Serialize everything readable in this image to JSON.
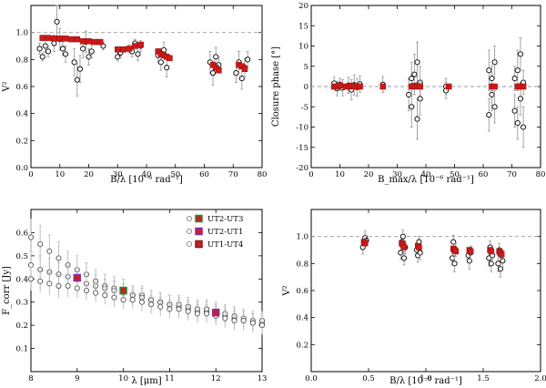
{
  "chart_data": [
    {
      "id": "p1",
      "type": "scatter",
      "xlabel": "B/λ [10⁻⁶ rad⁻¹]",
      "ylabel": "V²",
      "xlim": [
        0,
        80
      ],
      "ylim": [
        0.0,
        1.2
      ],
      "xticks": [
        0,
        10,
        20,
        30,
        40,
        50,
        60,
        70,
        80
      ],
      "yticks": [
        0.0,
        0.2,
        0.4,
        0.6,
        0.8,
        1.0
      ],
      "ref_line": 1.0,
      "model": [
        [
          4,
          0.96
        ],
        [
          6,
          0.96
        ],
        [
          8,
          0.955
        ],
        [
          10,
          0.955
        ],
        [
          12,
          0.955
        ],
        [
          14,
          0.95
        ],
        [
          16,
          0.95
        ],
        [
          18,
          0.935
        ],
        [
          20,
          0.935
        ],
        [
          22,
          0.93
        ],
        [
          24,
          0.93
        ],
        [
          30,
          0.875
        ],
        [
          32,
          0.875
        ],
        [
          34,
          0.88
        ],
        [
          36,
          0.9
        ],
        [
          38,
          0.91
        ],
        [
          44,
          0.86
        ],
        [
          45,
          0.84
        ],
        [
          46,
          0.83
        ],
        [
          47,
          0.82
        ],
        [
          48,
          0.81
        ],
        [
          63,
          0.76
        ],
        [
          64,
          0.74
        ],
        [
          65,
          0.72
        ],
        [
          72,
          0.76
        ],
        [
          73,
          0.75
        ],
        [
          74,
          0.73
        ]
      ],
      "observations": [
        [
          3,
          0.88,
          0.04
        ],
        [
          4,
          0.82,
          0.03
        ],
        [
          5,
          0.9,
          0.05
        ],
        [
          6,
          0.86,
          0.04
        ],
        [
          8,
          0.92,
          0.06
        ],
        [
          9,
          1.08,
          0.12
        ],
        [
          10,
          0.95,
          0.08
        ],
        [
          11,
          0.88,
          0.05
        ],
        [
          12,
          0.84,
          0.06
        ],
        [
          15,
          0.78,
          0.1
        ],
        [
          16,
          0.65,
          0.12
        ],
        [
          17,
          0.73,
          0.1
        ],
        [
          18,
          0.88,
          0.07
        ],
        [
          19,
          0.93,
          0.08
        ],
        [
          20,
          0.82,
          0.06
        ],
        [
          21,
          0.86,
          0.05
        ],
        [
          25,
          0.9,
          0.03
        ],
        [
          30,
          0.82,
          0.03
        ],
        [
          31,
          0.85,
          0.04
        ],
        [
          34,
          0.88,
          0.03
        ],
        [
          35,
          0.86,
          0.04
        ],
        [
          36,
          0.92,
          0.03
        ],
        [
          37,
          0.84,
          0.05
        ],
        [
          38,
          0.9,
          0.04
        ],
        [
          44,
          0.83,
          0.05
        ],
        [
          45,
          0.78,
          0.06
        ],
        [
          46,
          0.87,
          0.06
        ],
        [
          47,
          0.74,
          0.07
        ],
        [
          62,
          0.78,
          0.08
        ],
        [
          63,
          0.7,
          0.09
        ],
        [
          64,
          0.82,
          0.07
        ],
        [
          65,
          0.76,
          0.06
        ],
        [
          71,
          0.7,
          0.07
        ],
        [
          72,
          0.78,
          0.08
        ],
        [
          73,
          0.66,
          0.08
        ],
        [
          74,
          0.74,
          0.07
        ],
        [
          75,
          0.8,
          0.06
        ]
      ]
    },
    {
      "id": "p2",
      "type": "scatter",
      "xlabel": "B_max/λ [10⁻⁶ rad⁻¹]",
      "ylabel": "Closure phase [°]",
      "xlim": [
        0,
        80
      ],
      "ylim": [
        -20,
        20
      ],
      "xticks": [
        0,
        10,
        20,
        30,
        40,
        50,
        60,
        70,
        80
      ],
      "yticks": [
        -20,
        -15,
        -10,
        -5,
        0,
        5,
        10,
        15,
        20
      ],
      "ref_line": 0,
      "model": [
        [
          8,
          0
        ],
        [
          9,
          0
        ],
        [
          10,
          0.3
        ],
        [
          12,
          0
        ],
        [
          13,
          0
        ],
        [
          14,
          0.2
        ],
        [
          15,
          0
        ],
        [
          16,
          0
        ],
        [
          17,
          0
        ],
        [
          25,
          0
        ],
        [
          35,
          0
        ],
        [
          36,
          0.2
        ],
        [
          37,
          0
        ],
        [
          38,
          0
        ],
        [
          48,
          0
        ],
        [
          63,
          0
        ],
        [
          64,
          0
        ],
        [
          72,
          0
        ],
        [
          73,
          0
        ],
        [
          74,
          0
        ]
      ],
      "observations": [
        [
          8,
          0.8,
          1.5
        ],
        [
          9,
          -0.5,
          1.8
        ],
        [
          10,
          0.5,
          1.5
        ],
        [
          11,
          -0.3,
          2.0
        ],
        [
          13,
          0.3,
          2.0
        ],
        [
          14,
          -0.8,
          2.5
        ],
        [
          15,
          0.4,
          2.5
        ],
        [
          16,
          -0.2,
          2.2
        ],
        [
          17,
          0.6,
          2.0
        ],
        [
          25,
          0.5,
          2
        ],
        [
          34,
          -2,
          4
        ],
        [
          35,
          2,
          4
        ],
        [
          35,
          -5,
          5
        ],
        [
          36,
          3,
          5
        ],
        [
          37,
          -8,
          5
        ],
        [
          37,
          6,
          5
        ],
        [
          38,
          1,
          4
        ],
        [
          38,
          -3,
          4
        ],
        [
          47,
          0,
          2
        ],
        [
          47,
          -1,
          2
        ],
        [
          62,
          -7,
          4
        ],
        [
          62,
          4,
          5
        ],
        [
          63,
          -2,
          4
        ],
        [
          63,
          2,
          3
        ],
        [
          64,
          -5,
          4
        ],
        [
          64,
          6,
          4
        ],
        [
          71,
          -6,
          4
        ],
        [
          71,
          2,
          3
        ],
        [
          72,
          -9,
          4
        ],
        [
          72,
          4,
          5
        ],
        [
          73,
          -3,
          4
        ],
        [
          73,
          8,
          4
        ],
        [
          74,
          -10,
          5
        ],
        [
          74,
          1,
          3
        ]
      ]
    },
    {
      "id": "p3",
      "type": "scatter",
      "xlabel": "λ [μm]",
      "ylabel": "F_corr [Jy]",
      "xlim": [
        8,
        13
      ],
      "ylim": [
        0.0,
        0.7
      ],
      "xticks": [
        8,
        9,
        10,
        11,
        12,
        13
      ],
      "yticks": [
        0.1,
        0.2,
        0.3,
        0.4,
        0.5,
        0.6
      ],
      "legend": [
        {
          "label": "UT2-UT3",
          "marker": "#c62020",
          "border": "#2c8a2c"
        },
        {
          "label": "UT2-UT1",
          "marker": "#c62020",
          "border": "#8a2cae"
        },
        {
          "label": "UT1-UT4",
          "marker": "#c62020",
          "border": "#8a1818"
        }
      ],
      "series": [
        {
          "name": "UT2-UT3",
          "x": [
            8.0,
            8.2,
            8.4,
            8.6,
            8.8,
            9.0,
            9.2,
            9.4,
            9.6,
            9.8,
            10.0,
            10.2,
            10.4,
            10.6,
            10.8,
            11.0,
            11.2,
            11.4,
            11.6,
            11.8,
            12.0,
            12.2,
            12.4,
            12.6,
            12.8,
            13.0
          ],
          "y": [
            0.58,
            0.55,
            0.52,
            0.49,
            0.46,
            0.44,
            0.42,
            0.39,
            0.37,
            0.36,
            0.35,
            0.33,
            0.33,
            0.31,
            0.3,
            0.29,
            0.28,
            0.27,
            0.26,
            0.26,
            0.25,
            0.24,
            0.23,
            0.22,
            0.21,
            0.21
          ],
          "err": [
            0.08,
            0.08,
            0.07,
            0.07,
            0.06,
            0.06,
            0.05,
            0.05,
            0.05,
            0.05,
            0.05,
            0.04,
            0.04,
            0.04,
            0.04,
            0.04,
            0.04,
            0.04,
            0.04,
            0.04,
            0.04,
            0.04,
            0.04,
            0.04,
            0.04,
            0.04
          ]
        },
        {
          "name": "UT2-UT1",
          "x": [
            8.0,
            8.2,
            8.4,
            8.6,
            8.8,
            9.0,
            9.2,
            9.4,
            9.6,
            9.8,
            10.0,
            10.2,
            10.4,
            10.6,
            10.8,
            11.0,
            11.2,
            11.4,
            11.6,
            11.8,
            12.0,
            12.2,
            12.4,
            12.6,
            12.8,
            13.0
          ],
          "y": [
            0.46,
            0.44,
            0.43,
            0.42,
            0.41,
            0.4,
            0.38,
            0.37,
            0.36,
            0.35,
            0.34,
            0.33,
            0.32,
            0.31,
            0.3,
            0.29,
            0.29,
            0.28,
            0.27,
            0.27,
            0.26,
            0.25,
            0.24,
            0.23,
            0.22,
            0.22
          ],
          "err": [
            0.06,
            0.06,
            0.06,
            0.05,
            0.05,
            0.05,
            0.05,
            0.05,
            0.04,
            0.04,
            0.04,
            0.04,
            0.04,
            0.04,
            0.04,
            0.04,
            0.04,
            0.04,
            0.04,
            0.04,
            0.04,
            0.04,
            0.04,
            0.04,
            0.04,
            0.04
          ]
        },
        {
          "name": "UT1-UT4",
          "x": [
            8.0,
            8.2,
            8.4,
            8.6,
            8.8,
            9.0,
            9.2,
            9.4,
            9.6,
            9.8,
            10.0,
            10.2,
            10.4,
            10.6,
            10.8,
            11.0,
            11.2,
            11.4,
            11.6,
            11.8,
            12.0,
            12.2,
            12.4,
            12.6,
            12.8,
            13.0
          ],
          "y": [
            0.4,
            0.39,
            0.38,
            0.37,
            0.37,
            0.36,
            0.35,
            0.34,
            0.33,
            0.32,
            0.31,
            0.31,
            0.3,
            0.29,
            0.28,
            0.27,
            0.27,
            0.26,
            0.25,
            0.25,
            0.24,
            0.23,
            0.22,
            0.22,
            0.21,
            0.2
          ],
          "err": [
            0.05,
            0.05,
            0.05,
            0.05,
            0.05,
            0.04,
            0.04,
            0.04,
            0.04,
            0.04,
            0.04,
            0.04,
            0.04,
            0.04,
            0.04,
            0.04,
            0.04,
            0.04,
            0.04,
            0.04,
            0.04,
            0.04,
            0.04,
            0.04,
            0.04,
            0.04
          ]
        }
      ],
      "model": [
        {
          "x": 9,
          "y": 0.405,
          "color": "#c62020",
          "border": "#8a2cae"
        },
        {
          "x": 10,
          "y": 0.35,
          "color": "#c62020",
          "border": "#2c8a2c"
        },
        {
          "x": 12,
          "y": 0.255,
          "color": "#c62020",
          "border": "#8a2cae"
        }
      ]
    },
    {
      "id": "p4",
      "type": "scatter",
      "xlabel": "B/λ [10⁻⁶ rad⁻¹]",
      "ylabel": "V²",
      "xlim": [
        0.0,
        2.0
      ],
      "ylim": [
        0.0,
        1.2
      ],
      "xticks": [
        0.0,
        0.5,
        1.0,
        1.5,
        2.0
      ],
      "yticks": [
        0.2,
        0.4,
        0.6,
        0.8,
        1.0
      ],
      "ref_line": 1.0,
      "model": [
        [
          0.46,
          0.96
        ],
        [
          0.47,
          0.95
        ],
        [
          0.79,
          0.95
        ],
        [
          0.8,
          0.94
        ],
        [
          0.81,
          0.92
        ],
        [
          0.93,
          0.93
        ],
        [
          0.94,
          0.92
        ],
        [
          1.24,
          0.91
        ],
        [
          1.25,
          0.9
        ],
        [
          1.26,
          0.89
        ],
        [
          1.38,
          0.9
        ],
        [
          1.39,
          0.89
        ],
        [
          1.56,
          0.9
        ],
        [
          1.57,
          0.89
        ],
        [
          1.64,
          0.89
        ],
        [
          1.65,
          0.88
        ],
        [
          1.66,
          0.87
        ]
      ],
      "observations": [
        [
          0.45,
          0.92,
          0.05
        ],
        [
          0.47,
          0.99,
          0.05
        ],
        [
          0.48,
          0.97,
          0.04
        ],
        [
          0.78,
          0.88,
          0.05
        ],
        [
          0.79,
          0.96,
          0.05
        ],
        [
          0.8,
          1.0,
          0.05
        ],
        [
          0.81,
          0.84,
          0.05
        ],
        [
          0.82,
          0.92,
          0.05
        ],
        [
          0.92,
          0.9,
          0.05
        ],
        [
          0.93,
          0.86,
          0.05
        ],
        [
          0.94,
          0.96,
          0.04
        ],
        [
          0.95,
          0.88,
          0.05
        ],
        [
          1.23,
          0.84,
          0.05
        ],
        [
          1.24,
          0.96,
          0.05
        ],
        [
          1.25,
          0.8,
          0.06
        ],
        [
          1.26,
          0.9,
          0.05
        ],
        [
          1.37,
          0.86,
          0.05
        ],
        [
          1.38,
          0.82,
          0.06
        ],
        [
          1.39,
          0.88,
          0.05
        ],
        [
          1.55,
          0.84,
          0.06
        ],
        [
          1.56,
          0.92,
          0.05
        ],
        [
          1.57,
          0.8,
          0.06
        ],
        [
          1.58,
          0.86,
          0.05
        ],
        [
          1.63,
          0.8,
          0.06
        ],
        [
          1.64,
          0.9,
          0.05
        ],
        [
          1.65,
          0.76,
          0.06
        ],
        [
          1.66,
          0.86,
          0.05
        ],
        [
          1.67,
          0.82,
          0.05
        ]
      ]
    }
  ]
}
